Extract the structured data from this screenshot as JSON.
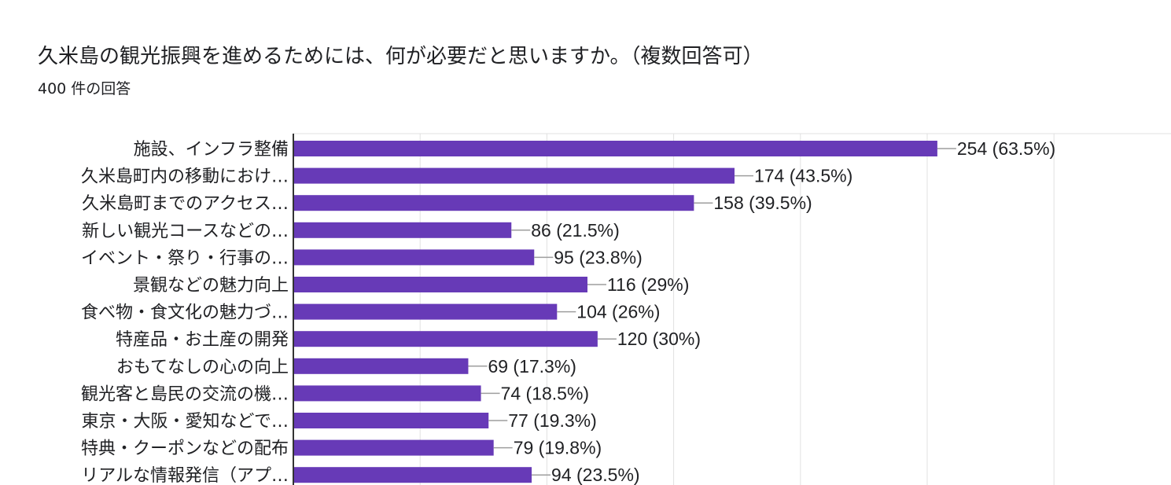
{
  "title": "久米島の観光振興を進めるためには、何が必要だと思いますか。（複数回答可）",
  "subtitle": "400 件の回答",
  "colors": {
    "bar": "#673ab7",
    "grid": "#e0e0e0",
    "axis": "#333333",
    "leader": "#9e9e9e"
  },
  "chart_data": {
    "type": "bar",
    "orientation": "horizontal",
    "categories": [
      "施設、インフラ整備",
      "久米島町内の移動におけ…",
      "久米島町までのアクセス…",
      "新しい観光コースなどの…",
      "イベント・祭り・行事の…",
      "景観などの魅力向上",
      "食べ物・食文化の魅力づ…",
      "特産品・お土産の開発",
      "おもてなしの心の向上",
      "観光客と島民の交流の機…",
      "東京・大阪・愛知などで…",
      "特典・クーポンなどの配布",
      "リアルな情報発信（アプ…"
    ],
    "values": [
      254,
      174,
      158,
      86,
      95,
      116,
      104,
      120,
      69,
      74,
      77,
      79,
      94
    ],
    "data_labels": [
      "254 (63.5%)",
      "174 (43.5%)",
      "158 (39.5%)",
      "86 (21.5%)",
      "95 (23.8%)",
      "116 (29%)",
      "104 (26%)",
      "120 (30%)",
      "69 (17.3%)",
      "74 (18.5%)",
      "77 (19.3%)",
      "79 (19.8%)",
      "94 (23.5%)"
    ],
    "xlim": [
      0,
      300
    ],
    "grid": true
  }
}
